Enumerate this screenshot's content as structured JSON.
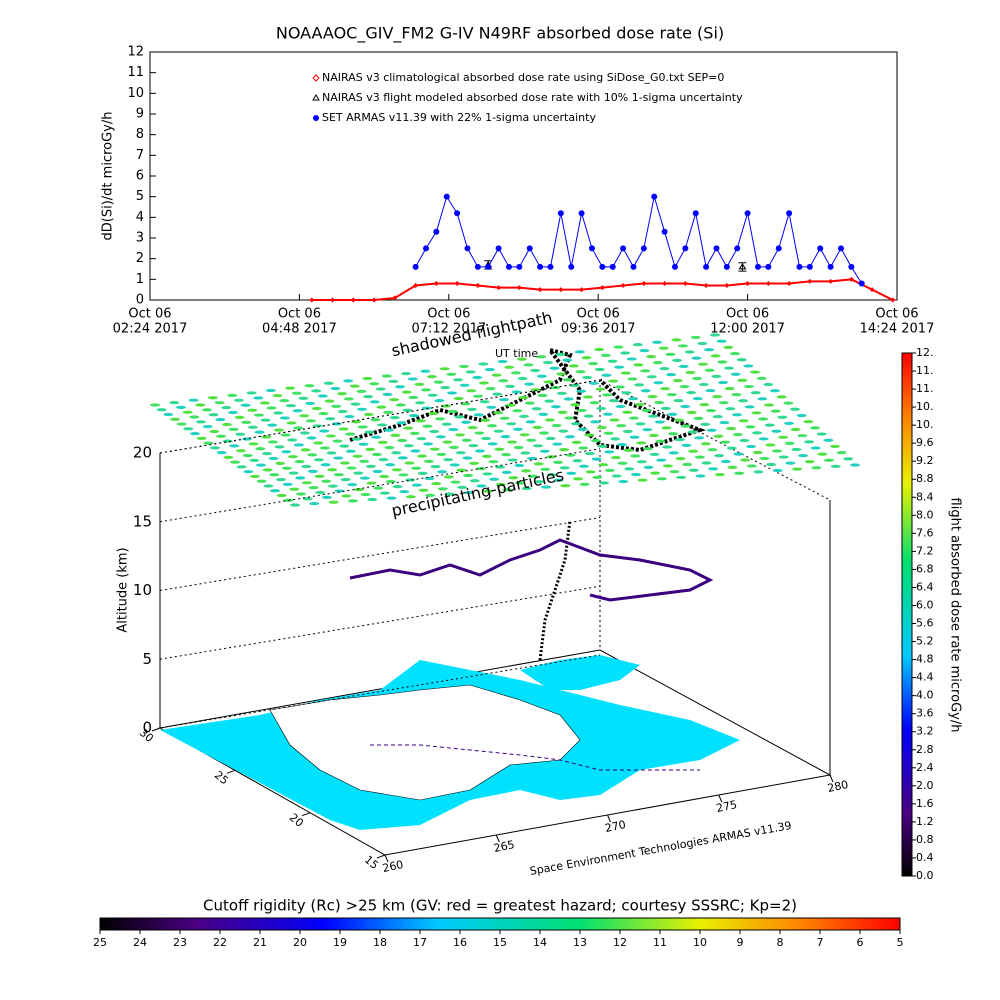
{
  "chart_data": [
    {
      "type": "line",
      "title": "NOAAAOC_GIV_FM2 G-IV    N49RF  absorbed dose rate (Si)",
      "ylabel": "dD(Si)/dt microGy/h",
      "xlim": [
        "2017-10-06T02:24",
        "2017-10-06T14:24"
      ],
      "xticks": [
        {
          "value": "2017-10-06T02:24",
          "label": [
            "Oct 06",
            "02:24 2017"
          ]
        },
        {
          "value": "2017-10-06T04:48",
          "label": [
            "Oct 06",
            "04:48 2017"
          ]
        },
        {
          "value": "2017-10-06T07:12",
          "label": [
            "Oct 06",
            "07:12 2017"
          ]
        },
        {
          "value": "2017-10-06T09:36",
          "label": [
            "Oct 06",
            "09:36 2017"
          ]
        },
        {
          "value": "2017-10-06T12:00",
          "label": [
            "Oct 06",
            "12:00 2017"
          ]
        },
        {
          "value": "2017-10-06T14:24",
          "label": [
            "Oct 06",
            "14:24 2017"
          ]
        }
      ],
      "ylim": [
        0,
        12
      ],
      "yticks": [
        0,
        1,
        2,
        3,
        4,
        5,
        6,
        7,
        8,
        9,
        10,
        11,
        12
      ],
      "legend": "upper left",
      "series": [
        {
          "name": "NAIRAS v3 climatological absorbed dose rate using SiDose_G0.txt SEP=0",
          "color": "#ff0000",
          "marker": "diamond",
          "x": [
            "2017-10-06T05:00",
            "2017-10-06T05:20",
            "2017-10-06T05:40",
            "2017-10-06T06:00",
            "2017-10-06T06:20",
            "2017-10-06T06:40",
            "2017-10-06T07:00",
            "2017-10-06T07:20",
            "2017-10-06T07:40",
            "2017-10-06T08:00",
            "2017-10-06T08:20",
            "2017-10-06T08:40",
            "2017-10-06T09:00",
            "2017-10-06T09:20",
            "2017-10-06T09:40",
            "2017-10-06T10:00",
            "2017-10-06T10:20",
            "2017-10-06T10:40",
            "2017-10-06T11:00",
            "2017-10-06T11:20",
            "2017-10-06T11:40",
            "2017-10-06T12:00",
            "2017-10-06T12:20",
            "2017-10-06T12:40",
            "2017-10-06T13:00",
            "2017-10-06T13:20",
            "2017-10-06T13:40",
            "2017-10-06T14:00",
            "2017-10-06T14:20"
          ],
          "values": [
            0,
            0,
            0,
            0,
            0.1,
            0.7,
            0.8,
            0.8,
            0.7,
            0.6,
            0.6,
            0.5,
            0.5,
            0.5,
            0.6,
            0.7,
            0.8,
            0.8,
            0.8,
            0.7,
            0.7,
            0.8,
            0.8,
            0.8,
            0.9,
            0.9,
            1.0,
            0.5,
            0
          ]
        },
        {
          "name": "NAIRAS v3 flight modeled absorbed dose rate with 10% 1-sigma uncertainty",
          "color": "#000000",
          "marker": "triangle",
          "x": [
            "2017-10-06T07:50",
            "2017-10-06T11:55"
          ],
          "values": [
            1.7,
            1.6
          ],
          "errors": [
            0.2,
            0.2
          ]
        },
        {
          "name": "SET ARMAS v11.39 with 22% 1-sigma uncertainty",
          "color": "#0000ff",
          "marker": "circle",
          "x": [
            "2017-10-06T06:40",
            "2017-10-06T06:50",
            "2017-10-06T07:00",
            "2017-10-06T07:10",
            "2017-10-06T07:20",
            "2017-10-06T07:30",
            "2017-10-06T07:40",
            "2017-10-06T07:50",
            "2017-10-06T08:00",
            "2017-10-06T08:10",
            "2017-10-06T08:20",
            "2017-10-06T08:30",
            "2017-10-06T08:40",
            "2017-10-06T08:50",
            "2017-10-06T09:00",
            "2017-10-06T09:10",
            "2017-10-06T09:20",
            "2017-10-06T09:30",
            "2017-10-06T09:40",
            "2017-10-06T09:50",
            "2017-10-06T10:00",
            "2017-10-06T10:10",
            "2017-10-06T10:20",
            "2017-10-06T10:30",
            "2017-10-06T10:40",
            "2017-10-06T10:50",
            "2017-10-06T11:00",
            "2017-10-06T11:10",
            "2017-10-06T11:20",
            "2017-10-06T11:30",
            "2017-10-06T11:40",
            "2017-10-06T11:50",
            "2017-10-06T12:00",
            "2017-10-06T12:10",
            "2017-10-06T12:20",
            "2017-10-06T12:30",
            "2017-10-06T12:40",
            "2017-10-06T12:50",
            "2017-10-06T13:00",
            "2017-10-06T13:10",
            "2017-10-06T13:20",
            "2017-10-06T13:30",
            "2017-10-06T13:40",
            "2017-10-06T13:50"
          ],
          "values": [
            1.6,
            2.5,
            3.3,
            5.0,
            4.2,
            2.5,
            1.6,
            1.6,
            2.5,
            1.6,
            1.6,
            2.5,
            1.6,
            1.6,
            4.2,
            1.6,
            4.2,
            2.5,
            1.6,
            1.6,
            2.5,
            1.6,
            2.5,
            5.0,
            3.3,
            1.6,
            2.5,
            4.2,
            1.6,
            2.5,
            1.6,
            2.5,
            4.2,
            1.6,
            1.6,
            2.5,
            4.2,
            1.6,
            1.6,
            2.5,
            1.6,
            2.5,
            1.6,
            0.8
          ]
        }
      ]
    },
    {
      "type": "surface3d",
      "zlabel": "Altitude (km)",
      "zlim": [
        0,
        20
      ],
      "zticks": [
        0,
        5,
        10,
        15,
        20
      ],
      "lat_lim": [
        30,
        15
      ],
      "lat_ticks": [
        30,
        25,
        20,
        15
      ],
      "lon_lim": [
        260,
        280
      ],
      "lon_ticks": [
        260,
        265,
        270,
        275,
        280
      ],
      "annotations": [
        "shadowed flightpath",
        "UT time",
        "precipitating-particles",
        "Space Environment Technologies ARMAS v11.39"
      ]
    },
    {
      "type": "colorbar",
      "orientation": "vertical",
      "label": "flight absorbed dose rate microGy/h",
      "ylim": [
        0,
        11.6
      ],
      "yticks": [
        {
          "value": 0,
          "label": "0.0"
        },
        0.4,
        0.8,
        1.2,
        1.6,
        {
          "value": 2,
          "label": "2.0"
        },
        2.4,
        2.8,
        3.2,
        3.6,
        {
          "value": 4,
          "label": "4.0"
        },
        4.4,
        4.8,
        5.2,
        5.6,
        {
          "value": 6,
          "label": "6.0"
        },
        6.4,
        6.8,
        7.2,
        7.6,
        {
          "value": 8,
          "label": "8.0"
        },
        8.4,
        8.8,
        9.2,
        9.6,
        {
          "value": 10,
          "label": "10."
        },
        {
          "value": 10.4,
          "label": "10."
        },
        {
          "value": 10.8,
          "label": "11."
        },
        {
          "value": 11.2,
          "label": "11."
        },
        {
          "value": 11.6,
          "label": "12."
        }
      ]
    },
    {
      "type": "colorbar",
      "orientation": "horizontal",
      "label": "Cutoff rigidity (Rc) >25 km (GV: red = greatest hazard; courtesy SSSRC; Kp=2)",
      "xlim": [
        25,
        5
      ],
      "xticks": [
        25,
        24,
        23,
        22,
        21,
        20,
        19,
        18,
        17,
        16,
        15,
        14,
        13,
        12,
        11,
        10,
        9,
        8,
        7,
        6,
        5
      ]
    }
  ]
}
